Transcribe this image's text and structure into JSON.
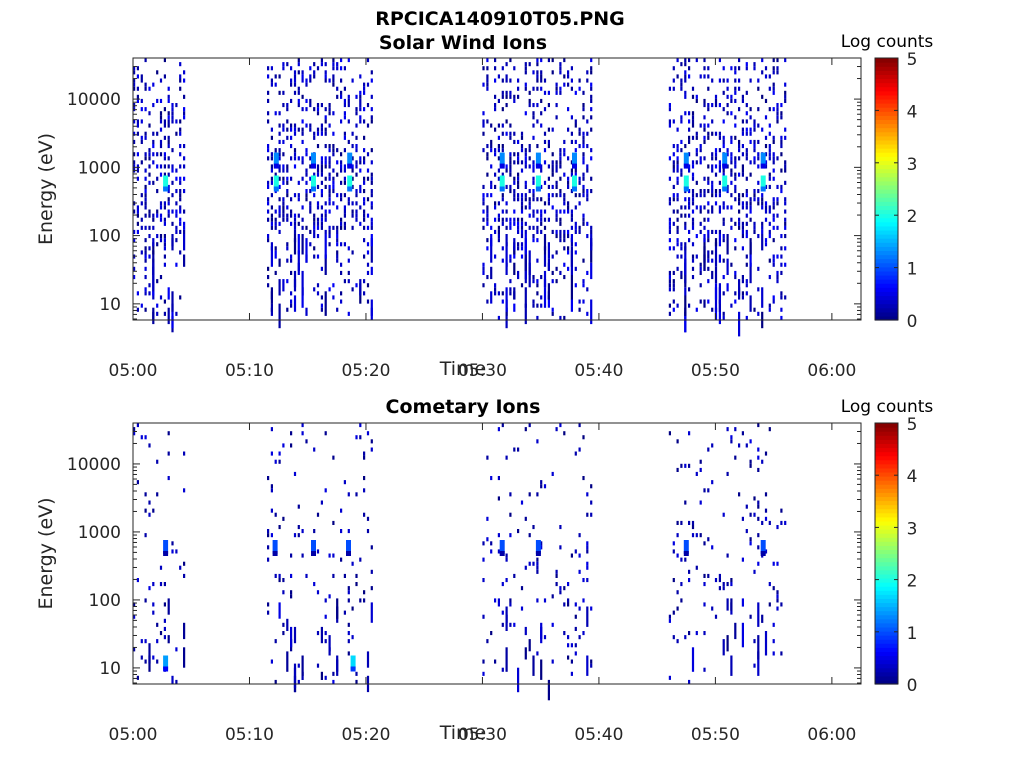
{
  "figure_title": "RPCICA140910T05.PNG",
  "chart_data": [
    {
      "type": "heatmap",
      "title": "Solar Wind Ions",
      "xlabel": "Time",
      "ylabel": "Energy (eV)",
      "x_ticks": [
        "05:00",
        "05:10",
        "05:20",
        "05:30",
        "05:40",
        "05:50",
        "06:00"
      ],
      "y_ticks": [
        "10",
        "100",
        "1000",
        "10000"
      ],
      "y_scale": "log",
      "ylim": [
        5.8,
        40000
      ],
      "xlim_minutes_after_0500": [
        0,
        62.5
      ],
      "colorbar": {
        "label": "Log counts",
        "ticks": [
          "0",
          "1",
          "2",
          "3",
          "4",
          "5"
        ],
        "range": [
          0,
          5
        ],
        "colormap": "jet"
      },
      "sweep_windows_minutes": [
        [
          0.0,
          4.5
        ],
        [
          11.5,
          20.5
        ],
        [
          30.0,
          39.5
        ],
        [
          46.0,
          56.0
        ]
      ],
      "peaks": [
        {
          "time": 2.8,
          "energy_eV": 600,
          "log_counts": 2.0
        },
        {
          "time": 12.3,
          "energy_eV": 1300,
          "log_counts": 1.3
        },
        {
          "time": 12.3,
          "energy_eV": 600,
          "log_counts": 2.0
        },
        {
          "time": 15.5,
          "energy_eV": 1300,
          "log_counts": 1.3
        },
        {
          "time": 15.5,
          "energy_eV": 600,
          "log_counts": 2.0
        },
        {
          "time": 18.6,
          "energy_eV": 1300,
          "log_counts": 1.3
        },
        {
          "time": 18.6,
          "energy_eV": 600,
          "log_counts": 2.0
        },
        {
          "time": 31.7,
          "energy_eV": 1300,
          "log_counts": 1.3
        },
        {
          "time": 31.7,
          "energy_eV": 600,
          "log_counts": 2.0
        },
        {
          "time": 34.8,
          "energy_eV": 1300,
          "log_counts": 1.3
        },
        {
          "time": 34.8,
          "energy_eV": 600,
          "log_counts": 2.0
        },
        {
          "time": 37.9,
          "energy_eV": 1300,
          "log_counts": 1.3
        },
        {
          "time": 37.9,
          "energy_eV": 600,
          "log_counts": 2.0
        },
        {
          "time": 47.5,
          "energy_eV": 1300,
          "log_counts": 1.3
        },
        {
          "time": 47.5,
          "energy_eV": 600,
          "log_counts": 2.0
        },
        {
          "time": 50.8,
          "energy_eV": 1300,
          "log_counts": 1.3
        },
        {
          "time": 50.8,
          "energy_eV": 600,
          "log_counts": 2.0
        },
        {
          "time": 54.1,
          "energy_eV": 1300,
          "log_counts": 1.3
        },
        {
          "time": 54.1,
          "energy_eV": 600,
          "log_counts": 2.0
        }
      ],
      "background_log_counts": [
        0,
        0.6
      ],
      "high_energy_fill_density": 0.34,
      "low_energy_fill_density": 0.22
    },
    {
      "type": "heatmap",
      "title": "Cometary Ions",
      "xlabel": "Time",
      "ylabel": "Energy (eV)",
      "x_ticks": [
        "05:00",
        "05:10",
        "05:20",
        "05:30",
        "05:40",
        "05:50",
        "06:00"
      ],
      "y_ticks": [
        "10",
        "100",
        "1000",
        "10000"
      ],
      "y_scale": "log",
      "ylim": [
        5.8,
        40000
      ],
      "xlim_minutes_after_0500": [
        0,
        62.5
      ],
      "colorbar": {
        "label": "Log counts",
        "ticks": [
          "0",
          "1",
          "2",
          "3",
          "4",
          "5"
        ],
        "range": [
          0,
          5
        ],
        "colormap": "jet"
      },
      "sweep_windows_minutes": [
        [
          0.0,
          4.5
        ],
        [
          11.5,
          20.5
        ],
        [
          30.0,
          39.5
        ],
        [
          46.0,
          56.0
        ]
      ],
      "peaks": [
        {
          "time": 2.8,
          "energy_eV": 12,
          "log_counts": 1.4
        },
        {
          "time": 18.9,
          "energy_eV": 12,
          "log_counts": 1.7
        },
        {
          "time": 2.8,
          "energy_eV": 600,
          "log_counts": 1.0
        },
        {
          "time": 12.2,
          "energy_eV": 600,
          "log_counts": 1.0
        },
        {
          "time": 15.5,
          "energy_eV": 600,
          "log_counts": 1.0
        },
        {
          "time": 18.5,
          "energy_eV": 600,
          "log_counts": 1.0
        },
        {
          "time": 31.7,
          "energy_eV": 600,
          "log_counts": 1.0
        },
        {
          "time": 34.8,
          "energy_eV": 600,
          "log_counts": 1.0
        },
        {
          "time": 47.5,
          "energy_eV": 600,
          "log_counts": 1.0
        },
        {
          "time": 54.1,
          "energy_eV": 600,
          "log_counts": 1.0
        }
      ],
      "background_log_counts": [
        0,
        0.5
      ],
      "high_energy_fill_density": 0.07,
      "low_energy_fill_density": 0.09
    }
  ]
}
